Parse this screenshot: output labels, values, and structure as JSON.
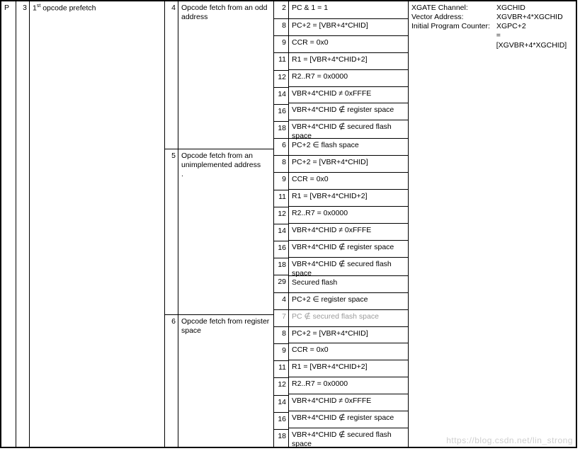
{
  "c1": {
    "P": "P"
  },
  "c2": {
    "n": "3"
  },
  "c3": {
    "label_html": "1<sup>st</sup> opcode prefetch"
  },
  "groups": {
    "g1": {
      "n": "4",
      "label": "Opcode fetch from an odd address"
    },
    "g2": {
      "n": "5",
      "label": "Opcode fetch from an unimplemented address\n."
    },
    "g3": {
      "n": "6",
      "label": "Opcode fetch from register space"
    }
  },
  "rows": {
    "g1": [
      {
        "n": "2",
        "t": "PC & 1 = 1"
      },
      {
        "n": "8",
        "t": "PC+2 = [VBR+4*CHID]"
      },
      {
        "n": "9",
        "t": "CCR = 0x0"
      },
      {
        "n": "11",
        "t": "R1 = [VBR+4*CHID+2]"
      },
      {
        "n": "12",
        "t": "R2..R7 = 0x0000"
      },
      {
        "n": "14",
        "t": "VBR+4*CHID ≠ 0xFFFE"
      },
      {
        "n": "16",
        "t": "VBR+4*CHID ∉ register space"
      },
      {
        "n": "18",
        "t": "VBR+4*CHID ∉ secured flash space"
      }
    ],
    "g2": [
      {
        "n": "6",
        "t": "PC+2 ∈ flash space"
      },
      {
        "n": "8",
        "t": "PC+2 = [VBR+4*CHID]"
      },
      {
        "n": "9",
        "t": "CCR = 0x0"
      },
      {
        "n": "11",
        "t": "R1 = [VBR+4*CHID+2]"
      },
      {
        "n": "12",
        "t": "R2..R7 = 0x0000"
      },
      {
        "n": "14",
        "t": "VBR+4*CHID ≠ 0xFFFE"
      },
      {
        "n": "16",
        "t": "VBR+4*CHID ∉ register space"
      },
      {
        "n": "18",
        "t": "VBR+4*CHID ∉ secured flash space"
      },
      {
        "n": "29",
        "t": "Secured flash"
      }
    ],
    "g3": [
      {
        "n": "4",
        "t": "PC+2 ∈ register space"
      },
      {
        "n": "7",
        "t": "PC ∉ secured flash space",
        "grey": true
      },
      {
        "n": "8",
        "t": "PC+2 = [VBR+4*CHID]"
      },
      {
        "n": "9",
        "t": "CCR = 0x0"
      },
      {
        "n": "11",
        "t": "R1 = [VBR+4*CHID+2]"
      },
      {
        "n": "12",
        "t": "R2..R7 = 0x0000"
      },
      {
        "n": "14",
        "t": "VBR+4*CHID ≠ 0xFFFE"
      },
      {
        "n": "16",
        "t": "VBR+4*CHID ∉ register space"
      },
      {
        "n": "18",
        "t": "VBR+4*CHID ∉ secured flash space"
      }
    ]
  },
  "side": [
    {
      "k": "XGATE Channel:",
      "v": "XGCHID"
    },
    {
      "k": "Vector Address:",
      "v": "XGVBR+4*XGCHID"
    },
    {
      "k": "Initial Program Counter:",
      "v": "XGPC+2"
    },
    {
      "k": "",
      "v": "= [XGVBR+4*XGCHID]"
    }
  ],
  "watermark": "https://blog.csdn.net/lin_strong"
}
